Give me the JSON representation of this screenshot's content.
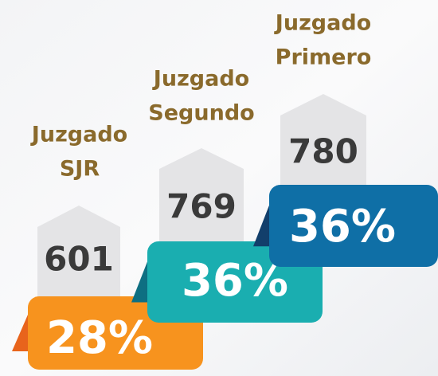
{
  "items": [
    {
      "label": [
        "Juzgado",
        "SJR"
      ],
      "count": "601",
      "percent": "28%"
    },
    {
      "label": [
        "Juzgado",
        "Segundo"
      ],
      "count": "769",
      "percent": "36%"
    },
    {
      "label": [
        "Juzgado",
        "Primero"
      ],
      "count": "780",
      "percent": "36%"
    }
  ]
}
